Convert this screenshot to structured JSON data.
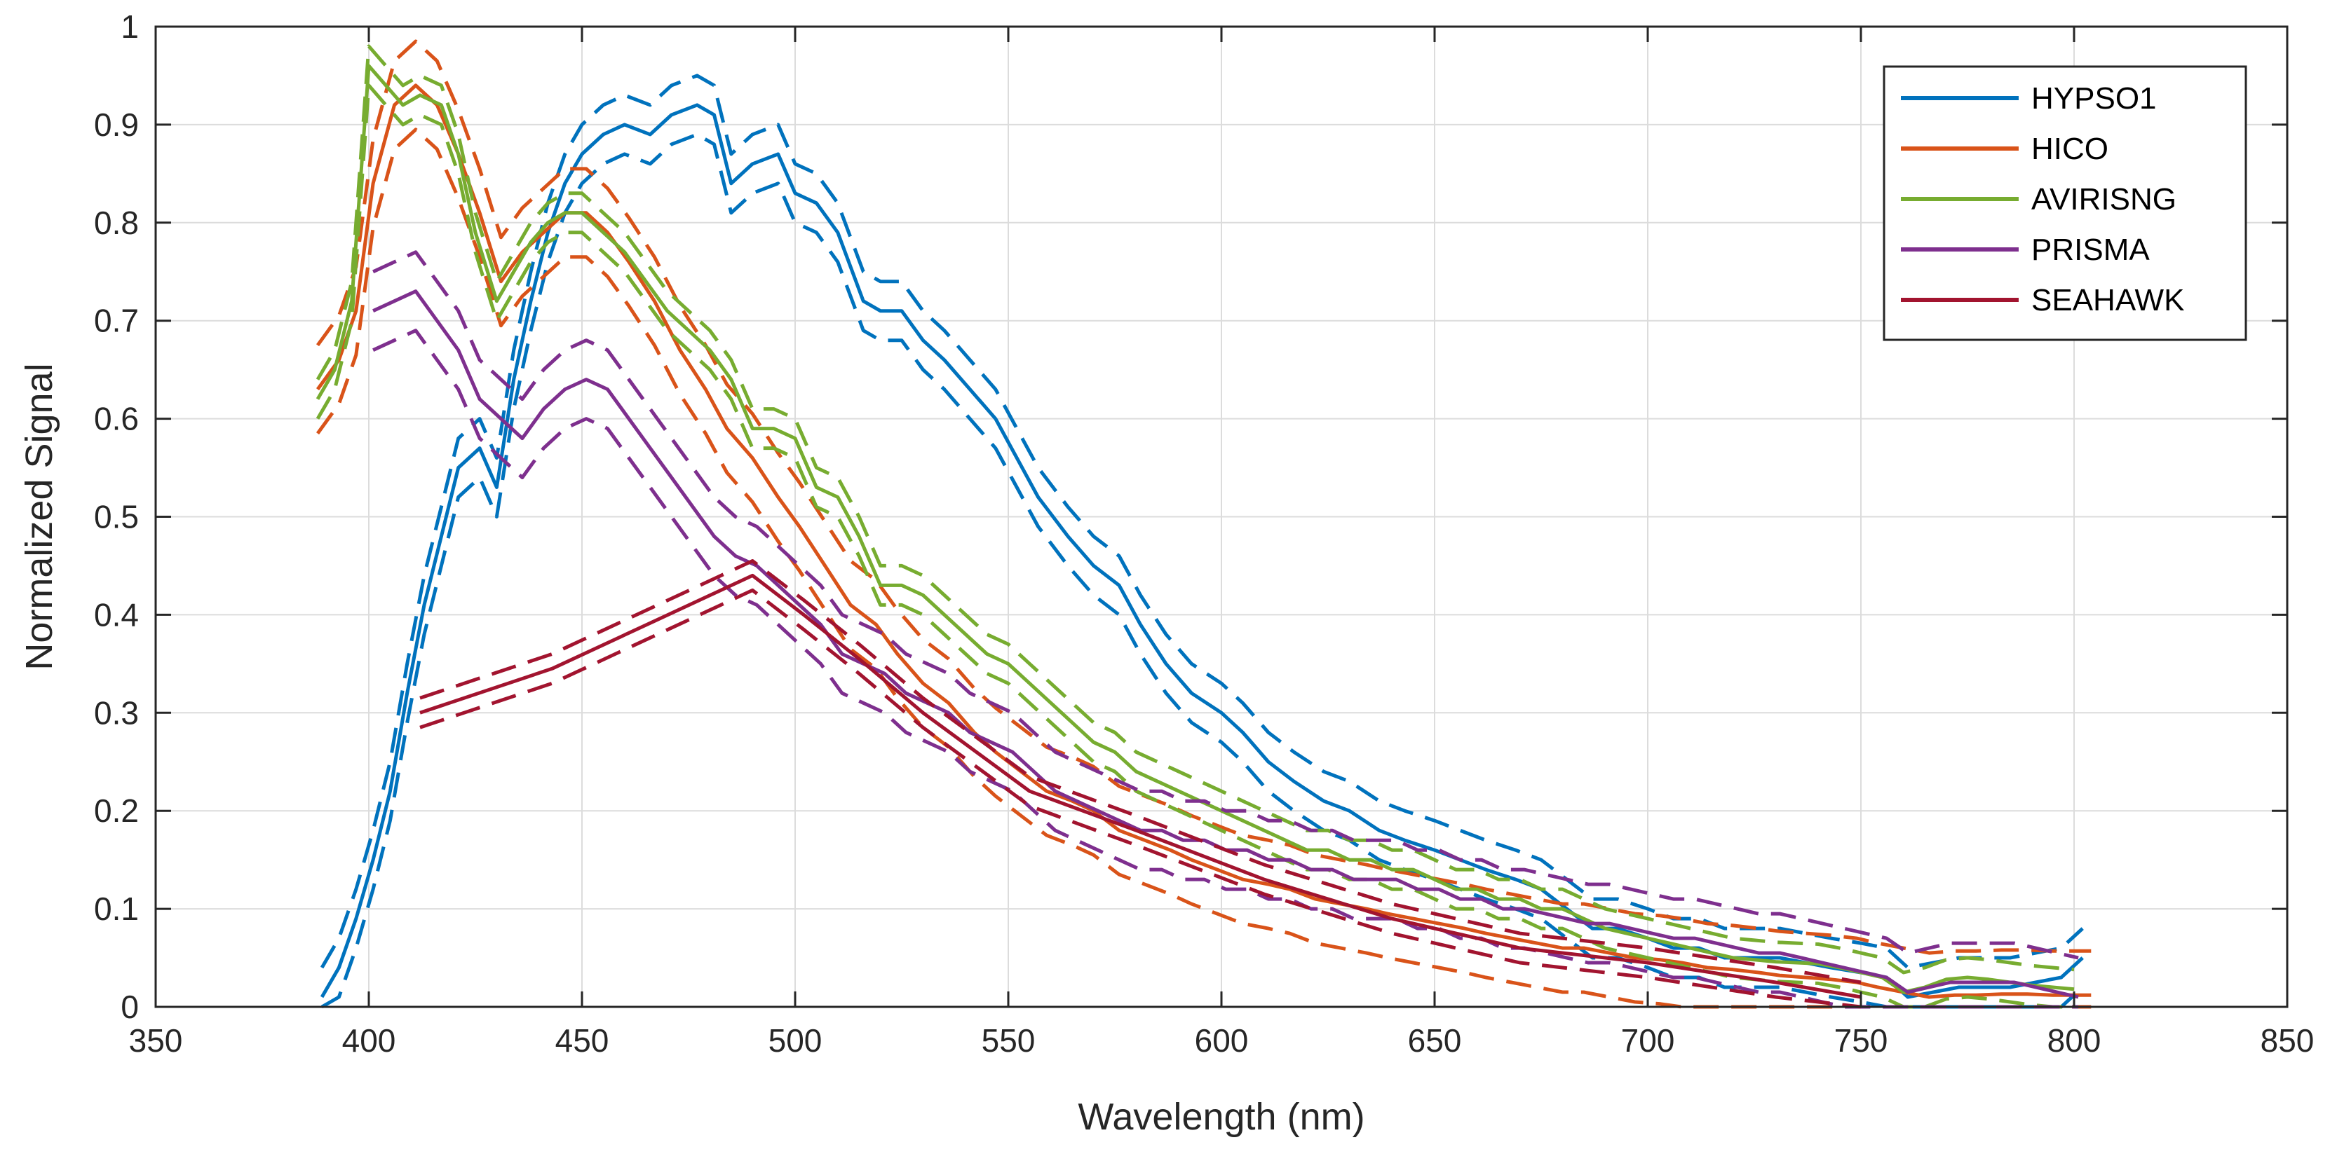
{
  "chart_data": {
    "type": "line",
    "title": "",
    "xlabel": "Wavelength (nm)",
    "ylabel": "Normalized Signal",
    "xlim": [
      350,
      850
    ],
    "ylim": [
      0,
      1
    ],
    "xticks": [
      350,
      400,
      450,
      500,
      550,
      600,
      650,
      700,
      750,
      800,
      850
    ],
    "yticks": [
      0,
      0.1,
      0.2,
      0.3,
      0.4,
      0.5,
      0.6,
      0.7,
      0.8,
      0.9,
      1
    ],
    "xtick_labels": [
      "350",
      "400",
      "450",
      "500",
      "550",
      "600",
      "650",
      "700",
      "750",
      "800",
      "850"
    ],
    "ytick_labels": [
      "0",
      "0.1",
      "0.2",
      "0.3",
      "0.4",
      "0.5",
      "0.6",
      "0.7",
      "0.8",
      "0.9",
      "1"
    ],
    "grid": true,
    "legend_position": "top-right",
    "series": [
      {
        "name": "HYPSO1",
        "color": "#0072BD",
        "x": [
          389,
          393,
          397,
          401,
          405,
          409,
          413,
          417,
          421,
          426,
          430,
          434,
          438,
          442,
          446,
          450,
          455,
          460,
          466,
          471,
          477,
          481,
          485,
          490,
          496,
          500,
          505,
          510,
          516,
          520,
          525,
          530,
          535,
          541,
          547,
          552,
          557,
          564,
          570,
          576,
          581,
          587,
          593,
          600,
          605,
          611,
          617,
          624,
          630,
          637,
          643,
          650,
          656,
          662,
          669,
          675,
          681,
          687,
          693,
          700,
          706,
          712,
          718,
          725,
          731,
          737,
          743,
          750,
          756,
          761,
          767,
          773,
          779,
          785,
          791,
          797,
          802
        ],
        "y": [
          0.01,
          0.04,
          0.09,
          0.15,
          0.22,
          0.32,
          0.41,
          0.48,
          0.55,
          0.57,
          0.53,
          0.64,
          0.72,
          0.79,
          0.84,
          0.87,
          0.89,
          0.9,
          0.89,
          0.91,
          0.92,
          0.91,
          0.84,
          0.86,
          0.87,
          0.83,
          0.82,
          0.79,
          0.72,
          0.71,
          0.71,
          0.68,
          0.66,
          0.63,
          0.6,
          0.56,
          0.52,
          0.48,
          0.45,
          0.43,
          0.39,
          0.35,
          0.32,
          0.3,
          0.28,
          0.25,
          0.23,
          0.21,
          0.2,
          0.18,
          0.17,
          0.16,
          0.15,
          0.14,
          0.13,
          0.12,
          0.1,
          0.08,
          0.08,
          0.07,
          0.06,
          0.06,
          0.05,
          0.05,
          0.05,
          0.045,
          0.04,
          0.035,
          0.03,
          0.01,
          0.015,
          0.02,
          0.02,
          0.02,
          0.025,
          0.03,
          0.05
        ],
        "err": 0.03
      },
      {
        "name": "HICO",
        "color": "#D95319",
        "x": [
          388,
          393,
          397,
          401,
          406,
          411,
          416,
          421,
          426,
          431,
          436,
          441,
          446,
          451,
          456,
          461,
          467,
          473,
          479,
          484,
          490,
          496,
          501,
          507,
          513,
          519,
          524,
          530,
          536,
          542,
          547,
          553,
          559,
          565,
          570,
          576,
          582,
          588,
          593,
          599,
          605,
          611,
          616,
          622,
          628,
          634,
          639,
          645,
          651,
          657,
          662,
          668,
          674,
          680,
          685,
          691,
          697,
          703,
          708,
          714,
          720,
          726,
          731,
          737,
          743,
          749,
          754,
          760,
          766,
          772,
          777,
          783,
          789,
          795,
          800,
          804
        ],
        "y": [
          0.63,
          0.66,
          0.71,
          0.84,
          0.92,
          0.94,
          0.92,
          0.87,
          0.81,
          0.74,
          0.77,
          0.79,
          0.81,
          0.81,
          0.79,
          0.76,
          0.72,
          0.67,
          0.63,
          0.59,
          0.56,
          0.52,
          0.49,
          0.45,
          0.41,
          0.39,
          0.36,
          0.33,
          0.31,
          0.28,
          0.26,
          0.24,
          0.22,
          0.21,
          0.2,
          0.18,
          0.17,
          0.16,
          0.15,
          0.14,
          0.13,
          0.125,
          0.12,
          0.11,
          0.105,
          0.1,
          0.095,
          0.09,
          0.085,
          0.08,
          0.075,
          0.07,
          0.065,
          0.06,
          0.06,
          0.055,
          0.05,
          0.048,
          0.045,
          0.04,
          0.038,
          0.035,
          0.032,
          0.03,
          0.028,
          0.025,
          0.02,
          0.015,
          0.01,
          0.012,
          0.012,
          0.013,
          0.013,
          0.012,
          0.012,
          0.012
        ],
        "err": 0.045
      },
      {
        "name": "AVIRISNG",
        "color": "#77AC30",
        "x": [
          388,
          392,
          396,
          400,
          404,
          408,
          412,
          417,
          421,
          425,
          430,
          434,
          438,
          442,
          446,
          450,
          455,
          460,
          465,
          470,
          475,
          480,
          485,
          490,
          495,
          500,
          505,
          510,
          515,
          520,
          525,
          530,
          535,
          540,
          545,
          550,
          555,
          560,
          565,
          570,
          575,
          580,
          585,
          590,
          595,
          600,
          605,
          610,
          615,
          620,
          625,
          630,
          635,
          640,
          645,
          650,
          655,
          660,
          665,
          670,
          675,
          680,
          685,
          690,
          695,
          700,
          705,
          710,
          715,
          720,
          725,
          730,
          735,
          740,
          745,
          750,
          755,
          760,
          765,
          770,
          775,
          780,
          785,
          790,
          795,
          800
        ],
        "y": [
          0.62,
          0.65,
          0.72,
          0.96,
          0.94,
          0.92,
          0.93,
          0.92,
          0.87,
          0.79,
          0.72,
          0.75,
          0.78,
          0.8,
          0.81,
          0.81,
          0.79,
          0.77,
          0.74,
          0.71,
          0.69,
          0.67,
          0.64,
          0.59,
          0.59,
          0.58,
          0.53,
          0.52,
          0.48,
          0.43,
          0.43,
          0.42,
          0.4,
          0.38,
          0.36,
          0.35,
          0.33,
          0.31,
          0.29,
          0.27,
          0.26,
          0.24,
          0.23,
          0.22,
          0.21,
          0.2,
          0.19,
          0.18,
          0.17,
          0.16,
          0.16,
          0.15,
          0.15,
          0.14,
          0.14,
          0.13,
          0.12,
          0.12,
          0.11,
          0.11,
          0.1,
          0.1,
          0.09,
          0.08,
          0.075,
          0.07,
          0.065,
          0.06,
          0.055,
          0.05,
          0.048,
          0.046,
          0.045,
          0.044,
          0.04,
          0.035,
          0.03,
          0.015,
          0.02,
          0.028,
          0.03,
          0.028,
          0.025,
          0.022,
          0.02,
          0.018
        ],
        "err": 0.02
      },
      {
        "name": "PRISMA",
        "color": "#7E2F8E",
        "x": [
          401,
          406,
          411,
          416,
          421,
          426,
          431,
          436,
          441,
          446,
          451,
          456,
          461,
          466,
          471,
          476,
          481,
          486,
          491,
          496,
          501,
          506,
          511,
          516,
          521,
          526,
          531,
          536,
          541,
          546,
          551,
          556,
          561,
          566,
          571,
          576,
          581,
          586,
          591,
          596,
          601,
          606,
          611,
          616,
          621,
          626,
          631,
          636,
          641,
          646,
          651,
          656,
          661,
          666,
          671,
          676,
          681,
          686,
          691,
          696,
          701,
          706,
          711,
          716,
          721,
          726,
          731,
          736,
          741,
          746,
          751,
          756,
          761,
          766,
          771,
          776,
          781,
          786,
          791,
          796,
          801
        ],
        "y": [
          0.71,
          0.72,
          0.73,
          0.7,
          0.67,
          0.62,
          0.6,
          0.58,
          0.61,
          0.63,
          0.64,
          0.63,
          0.6,
          0.57,
          0.54,
          0.51,
          0.48,
          0.46,
          0.45,
          0.43,
          0.41,
          0.39,
          0.36,
          0.35,
          0.34,
          0.32,
          0.31,
          0.3,
          0.28,
          0.27,
          0.26,
          0.24,
          0.22,
          0.21,
          0.2,
          0.19,
          0.18,
          0.18,
          0.17,
          0.17,
          0.16,
          0.16,
          0.15,
          0.15,
          0.14,
          0.14,
          0.13,
          0.13,
          0.13,
          0.12,
          0.12,
          0.11,
          0.11,
          0.1,
          0.1,
          0.095,
          0.09,
          0.085,
          0.085,
          0.08,
          0.075,
          0.07,
          0.07,
          0.065,
          0.06,
          0.055,
          0.055,
          0.05,
          0.045,
          0.04,
          0.035,
          0.03,
          0.015,
          0.02,
          0.025,
          0.025,
          0.025,
          0.025,
          0.02,
          0.015,
          0.01
        ],
        "err": 0.04
      },
      {
        "name": "SEAHAWK",
        "color": "#A2142F",
        "x": [
          412,
          443,
          490,
          502,
          515,
          530,
          555,
          580,
          610,
          640,
          670,
          700,
          730,
          750
        ],
        "y": [
          0.3,
          0.345,
          0.44,
          0.4,
          0.355,
          0.3,
          0.22,
          0.18,
          0.13,
          0.09,
          0.06,
          0.045,
          0.025,
          0.01
        ],
        "err": 0.015
      }
    ]
  }
}
